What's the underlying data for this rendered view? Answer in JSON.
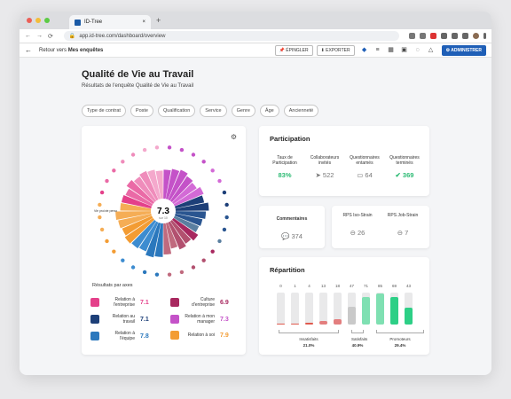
{
  "browser": {
    "tab_title": "ID-Tree",
    "new_tab": "+",
    "url": "app.id-tree.com/dashboard/overview",
    "lock_icon": "lock-icon"
  },
  "appbar": {
    "back_prefix": "Retour vers ",
    "back_target": "Mes enquêtes",
    "pin_label": "ÉPINGLER",
    "export_label": "EXPORTER",
    "admin_label": "ADMINISTRER"
  },
  "page": {
    "title": "Qualité de Vie au Travail",
    "subtitle": "Résultats de l'enquête Qualité de Vie au Travail",
    "filters": [
      "Type de contrat",
      "Poste",
      "Qualification",
      "Service",
      "Genre",
      "Âge",
      "Ancienneté"
    ]
  },
  "score": {
    "value": "7.3",
    "scale": "sur 10"
  },
  "axes": {
    "title": "Résultats par axes",
    "items": [
      {
        "label": "Relation à l'entreprise",
        "value": "7.1",
        "color": "#e4408a"
      },
      {
        "label": "Culture d'entreprise",
        "value": "6.9",
        "color": "#a8285f"
      },
      {
        "label": "Relation au travail",
        "value": "7.1",
        "color": "#1d3f78"
      },
      {
        "label": "Relation à mon manager",
        "value": "7.3",
        "color": "#c452c8"
      },
      {
        "label": "Relation à l'équipe",
        "value": "7.8",
        "color": "#2b78bd"
      },
      {
        "label": "Relation à soi",
        "value": "7.9",
        "color": "#f39c33"
      }
    ]
  },
  "participation": {
    "title": "Participation",
    "rate_label": "Taux de Participation",
    "rate_value": "83%",
    "invited_label": "Collaborateurs invités",
    "invited_value": "522",
    "started_label": "Questionnaires entamés",
    "started_value": "64",
    "done_label": "Questionnaires terminés",
    "done_value": "369"
  },
  "comments": {
    "label": "Commentaires",
    "value": "374"
  },
  "rps": {
    "iso_label": "RPS Iso-Strain",
    "iso_value": "26",
    "job_label": "RPS Job-Strain",
    "job_value": "7"
  },
  "repartition": {
    "title": "Répartition",
    "bars": [
      {
        "count": "0",
        "level": 0.02,
        "color": "#e05a4e"
      },
      {
        "count": "1",
        "level": 0.03,
        "color": "#e05a4e"
      },
      {
        "count": "4",
        "level": 0.05,
        "color": "#e05a4e"
      },
      {
        "count": "13",
        "level": 0.12,
        "color": "#e37e7e"
      },
      {
        "count": "18",
        "level": 0.18,
        "color": "#e37e7e"
      },
      {
        "count": "47",
        "level": 0.55,
        "color": "#c9c9c9"
      },
      {
        "count": "71",
        "level": 0.85,
        "color": "#7fe0b2"
      },
      {
        "count": "85",
        "level": 0.98,
        "color": "#7fe0b2"
      },
      {
        "count": "69",
        "level": 0.85,
        "color": "#2dcf86"
      },
      {
        "count": "43",
        "level": 0.52,
        "color": "#2dcf86"
      }
    ],
    "groups": [
      {
        "label": "Insatisfaits",
        "pct": "21.0%"
      },
      {
        "label": "Satisfaits",
        "pct": "40.9%"
      },
      {
        "label": "Promoteurs",
        "pct": "29.4%"
      }
    ]
  },
  "sunburst": {
    "legend_hint": "Vie pro/vie perso",
    "segments": [
      {
        "value": 6.8,
        "color": "#c452c8"
      },
      {
        "value": 7.2,
        "color": "#c452c8"
      },
      {
        "value": 7.6,
        "color": "#c452c8"
      },
      {
        "value": 7.0,
        "color": "#c452c8"
      },
      {
        "value": 6.6,
        "color": "#d36ad6"
      },
      {
        "value": 7.4,
        "color": "#d36ad6"
      },
      {
        "value": 6.9,
        "color": "#1d3f78"
      },
      {
        "value": 7.8,
        "color": "#1d3f78"
      },
      {
        "value": 7.1,
        "color": "#2a5590"
      },
      {
        "value": 6.5,
        "color": "#2a5590"
      },
      {
        "value": 6.2,
        "color": "#5a7fa0"
      },
      {
        "value": 7.0,
        "color": "#a8285f"
      },
      {
        "value": 6.4,
        "color": "#b2506f"
      },
      {
        "value": 6.9,
        "color": "#b2506f"
      },
      {
        "value": 6.1,
        "color": "#c06a7e"
      },
      {
        "value": 7.3,
        "color": "#c06a7e"
      },
      {
        "value": 7.9,
        "color": "#2b78bd"
      },
      {
        "value": 8.2,
        "color": "#2b78bd"
      },
      {
        "value": 7.4,
        "color": "#3d8cd0"
      },
      {
        "value": 7.7,
        "color": "#3d8cd0"
      },
      {
        "value": 8.0,
        "color": "#f39c33"
      },
      {
        "value": 7.6,
        "color": "#f39c33"
      },
      {
        "value": 7.9,
        "color": "#f5ad55"
      },
      {
        "value": 8.3,
        "color": "#f5ad55"
      },
      {
        "value": 7.2,
        "color": "#f5ad55"
      },
      {
        "value": 7.1,
        "color": "#e4408a"
      },
      {
        "value": 6.7,
        "color": "#ea6aa6"
      },
      {
        "value": 7.5,
        "color": "#ea6aa6"
      },
      {
        "value": 6.9,
        "color": "#ef8cbb"
      },
      {
        "value": 7.3,
        "color": "#ef8cbb"
      },
      {
        "value": 7.0,
        "color": "#f4a8cc"
      },
      {
        "value": 6.6,
        "color": "#f4a8cc"
      }
    ]
  }
}
